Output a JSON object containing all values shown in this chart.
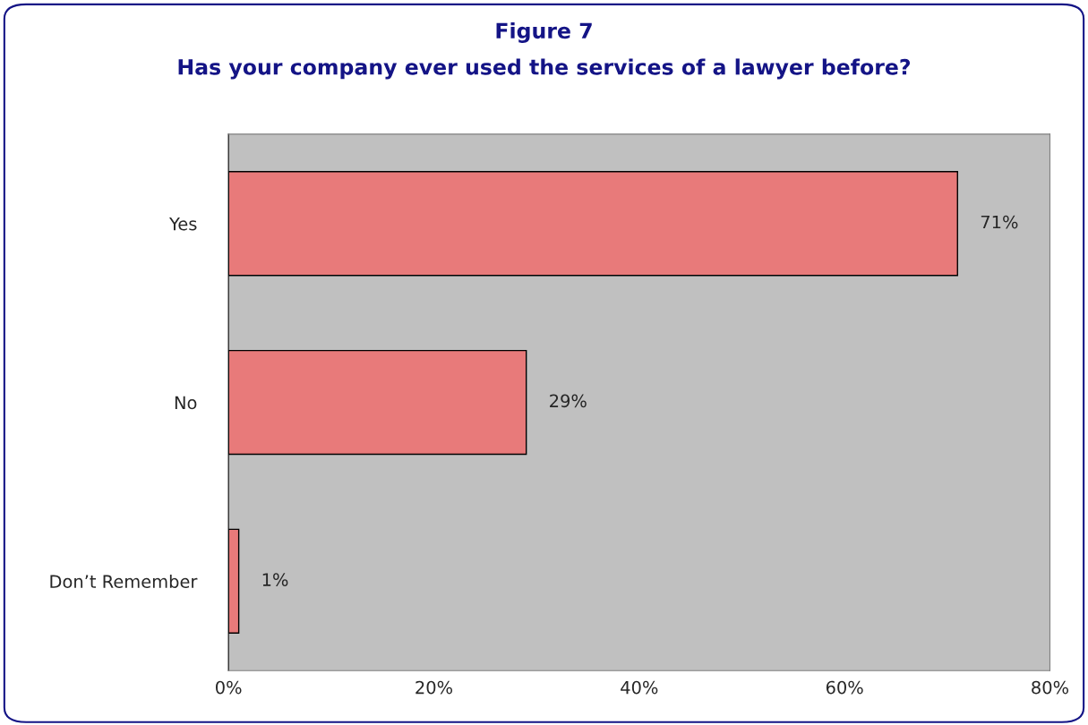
{
  "chart_data": {
    "type": "bar",
    "orientation": "horizontal",
    "title": "Figure 7",
    "subtitle": "Has your company ever used the services of a lawyer before?",
    "categories": [
      "Yes",
      "No",
      "Don’t Remember"
    ],
    "values": [
      71,
      29,
      1
    ],
    "value_labels": [
      "71%",
      "29%",
      "1%"
    ],
    "color": "#e87a7a",
    "xlim": [
      0,
      80
    ],
    "xticks": [
      {
        "value": 0,
        "label": "0%"
      },
      {
        "value": 20,
        "label": "20%"
      },
      {
        "value": 40,
        "label": "40%"
      },
      {
        "value": 60,
        "label": "60%"
      },
      {
        "value": 80,
        "label": "80%"
      }
    ],
    "grid": false,
    "legend": false
  }
}
